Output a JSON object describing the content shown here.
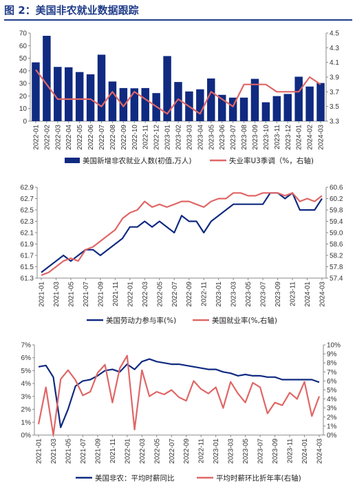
{
  "figure": {
    "title": "图 2：美国非农就业数据跟踪"
  },
  "colors": {
    "navy": "#0f2a80",
    "salmon": "#e06666",
    "title_blue": "#1f3c88"
  },
  "chart_data": [
    {
      "type": "bar",
      "categories": [
        "2022-01",
        "2022-02",
        "2022-03",
        "2022-04",
        "2022-05",
        "2022-06",
        "2022-07",
        "2022-08",
        "2022-09",
        "2022-10",
        "2022-11",
        "2022-12",
        "2023-01",
        "2023-02",
        "2023-03",
        "2023-04",
        "2023-05",
        "2023-06",
        "2023-07",
        "2023-08",
        "2023-09",
        "2023-10",
        "2023-11",
        "2023-12",
        "2024-01",
        "2024-02",
        "2024-03"
      ],
      "y_ticks": [
        0,
        10,
        20,
        30,
        40,
        50,
        60,
        70
      ],
      "y2_ticks": [
        "3.3",
        "3.5",
        "3.7",
        "3.9",
        "4.1",
        "4.3",
        "4.5"
      ],
      "ylim": [
        0,
        70
      ],
      "y2lim": [
        3.3,
        4.5
      ],
      "series": [
        {
          "name": "美国新增非农就业人数(初值,万人)",
          "kind": "bar",
          "axis": "left",
          "color": "#0f2a80",
          "values": [
            46.7,
            67.8,
            43.1,
            42.8,
            39.0,
            37.2,
            52.8,
            31.5,
            26.3,
            26.1,
            26.3,
            22.3,
            51.7,
            31.1,
            23.6,
            25.3,
            33.9,
            20.9,
            18.7,
            18.7,
            33.6,
            15.0,
            19.9,
            21.6,
            35.3,
            27.5,
            30.3
          ]
        },
        {
          "name": "失业率U3季调（%，右轴)",
          "kind": "line",
          "axis": "right",
          "color": "#e06666",
          "values": [
            4.0,
            3.8,
            3.6,
            3.6,
            3.6,
            3.6,
            3.5,
            3.7,
            3.5,
            3.7,
            3.6,
            3.5,
            3.4,
            3.6,
            3.5,
            3.4,
            3.7,
            3.6,
            3.5,
            3.8,
            3.8,
            3.8,
            3.7,
            3.7,
            3.7,
            3.9,
            3.8
          ]
        }
      ]
    },
    {
      "type": "line",
      "categories": [
        "2021-01",
        "2021-02",
        "2021-03",
        "2021-04",
        "2021-05",
        "2021-06",
        "2021-07",
        "2021-08",
        "2021-09",
        "2021-10",
        "2021-11",
        "2021-12",
        "2022-01",
        "2022-02",
        "2022-03",
        "2022-04",
        "2022-05",
        "2022-06",
        "2022-07",
        "2022-08",
        "2022-09",
        "2022-10",
        "2022-11",
        "2022-12",
        "2023-01",
        "2023-02",
        "2023-03",
        "2023-04",
        "2023-05",
        "2023-06",
        "2023-07",
        "2023-08",
        "2023-09",
        "2023-10",
        "2023-11",
        "2023-12",
        "2024-01",
        "2024-02",
        "2024-03"
      ],
      "tick_labels": [
        "2021-01",
        "2021-03",
        "2021-05",
        "2021-07",
        "2021-09",
        "2021-11",
        "2022-01",
        "2022-03",
        "2022-05",
        "2022-07",
        "2022-09",
        "2022-11",
        "2023-01",
        "2023-03",
        "2023-05",
        "2023-07",
        "2023-09",
        "2023-11",
        "2024-01",
        "2024-03"
      ],
      "y_ticks": [
        "61.3",
        "61.5",
        "61.7",
        "61.9",
        "62.1",
        "62.3",
        "62.5",
        "62.7",
        "62.9"
      ],
      "y2_ticks": [
        "57.4",
        "57.8",
        "58.2",
        "58.6",
        "59.0",
        "59.4",
        "59.8",
        "60.2",
        "60.6"
      ],
      "ylim": [
        61.3,
        62.9
      ],
      "y2lim": [
        57.4,
        60.6
      ],
      "series": [
        {
          "name": "美国劳动力参与率(%)",
          "axis": "left",
          "color": "#0f2a80",
          "values": [
            61.4,
            61.5,
            61.6,
            61.7,
            61.6,
            61.7,
            61.8,
            61.8,
            61.7,
            61.8,
            61.9,
            62.0,
            62.2,
            62.2,
            62.3,
            62.2,
            62.3,
            62.2,
            62.1,
            62.4,
            62.3,
            62.3,
            62.1,
            62.3,
            62.4,
            62.5,
            62.6,
            62.6,
            62.6,
            62.6,
            62.6,
            62.8,
            62.8,
            62.7,
            62.8,
            62.5,
            62.5,
            62.5,
            62.7
          ]
        },
        {
          "name": "美国就业率(%,右轴)",
          "axis": "right",
          "color": "#e06666",
          "values": [
            57.5,
            57.6,
            57.8,
            58.0,
            58.1,
            58.0,
            58.4,
            58.5,
            58.7,
            58.9,
            59.1,
            59.5,
            59.7,
            59.8,
            60.1,
            59.9,
            60.0,
            59.9,
            60.0,
            60.1,
            60.1,
            60.0,
            59.9,
            60.1,
            60.2,
            60.2,
            60.4,
            60.4,
            60.3,
            60.3,
            60.4,
            60.4,
            60.4,
            60.3,
            60.4,
            60.1,
            60.2,
            60.1,
            60.3
          ]
        }
      ]
    },
    {
      "type": "line",
      "categories": [
        "2021-01",
        "2021-02",
        "2021-03",
        "2021-04",
        "2021-05",
        "2021-06",
        "2021-07",
        "2021-08",
        "2021-09",
        "2021-10",
        "2021-11",
        "2021-12",
        "2022-01",
        "2022-02",
        "2022-03",
        "2022-04",
        "2022-05",
        "2022-06",
        "2022-07",
        "2022-08",
        "2022-09",
        "2022-10",
        "2022-11",
        "2022-12",
        "2023-01",
        "2023-02",
        "2023-03",
        "2023-04",
        "2023-05",
        "2023-06",
        "2023-07",
        "2023-08",
        "2023-09",
        "2023-10",
        "2023-11",
        "2023-12",
        "2024-01",
        "2024-02",
        "2024-03"
      ],
      "tick_labels": [
        "2021-01",
        "2021-03",
        "2021-05",
        "2021-07",
        "2021-09",
        "2021-11",
        "2022-01",
        "2022-03",
        "2022-05",
        "2022-07",
        "2022-09",
        "2022-11",
        "2023-01",
        "2023-03",
        "2023-05",
        "2023-07",
        "2023-09",
        "2023-11",
        "2024-01",
        "2024-03"
      ],
      "y_ticks": [
        "0%",
        "1%",
        "2%",
        "3%",
        "4%",
        "5%",
        "6%",
        "7%"
      ],
      "y2_ticks": [
        "0%",
        "1%",
        "2%",
        "3%",
        "4%",
        "5%",
        "6%",
        "7%",
        "8%",
        "9%",
        "10%"
      ],
      "ylim": [
        0,
        7
      ],
      "y2lim": [
        0,
        10
      ],
      "series": [
        {
          "name": "美国非农：平均时薪同比",
          "axis": "left",
          "color": "#0f2a80",
          "values": [
            5.3,
            5.4,
            4.5,
            0.6,
            2.0,
            3.8,
            4.2,
            4.3,
            4.6,
            5.0,
            5.1,
            4.9,
            5.5,
            5.1,
            5.7,
            5.9,
            5.7,
            5.6,
            5.5,
            5.5,
            5.4,
            5.3,
            5.2,
            5.1,
            5.1,
            4.9,
            4.8,
            4.6,
            4.7,
            4.6,
            4.6,
            4.5,
            4.5,
            4.3,
            4.3,
            4.3,
            4.3,
            4.3,
            4.1
          ]
        },
        {
          "name": "平均时薪环比折年率(右轴)",
          "axis": "right",
          "color": "#e06666",
          "values": [
            1.2,
            5.3,
            0.0,
            6.2,
            7.2,
            6.1,
            4.4,
            4.8,
            6.9,
            7.8,
            3.6,
            7.4,
            8.8,
            0.6,
            7.2,
            4.3,
            4.8,
            4.5,
            5.0,
            4.2,
            3.8,
            6.0,
            5.1,
            4.6,
            5.3,
            3.0,
            5.9,
            4.6,
            3.6,
            5.8,
            5.3,
            2.4,
            3.6,
            3.3,
            4.7,
            4.0,
            5.9,
            2.1,
            4.3
          ]
        }
      ]
    }
  ]
}
